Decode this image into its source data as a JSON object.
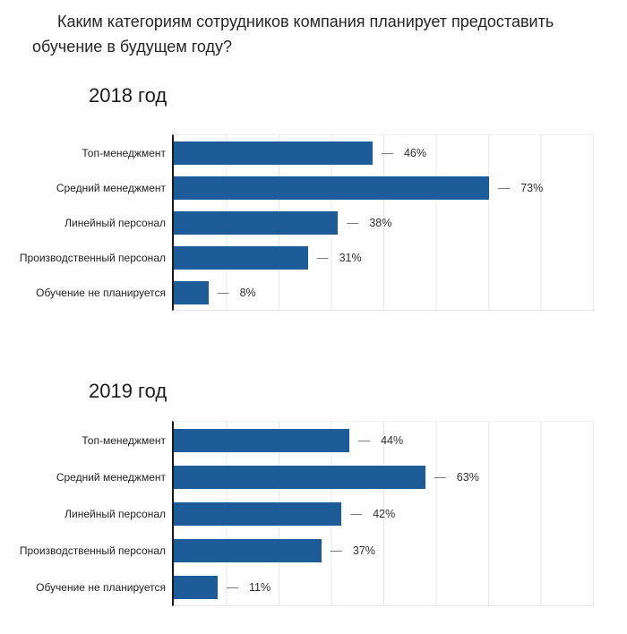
{
  "title": "Каким категориям сотрудников компания планирует предоставить обучение в будущем году?",
  "value_prefix": "—",
  "colors": {
    "bar": "#1e5b99",
    "grid": "#e7e7e7",
    "axis": "#1a1a1a",
    "text": "#262626"
  },
  "chart_data": [
    {
      "type": "bar",
      "orientation": "horizontal",
      "title": "2018 год",
      "categories": [
        "Топ-менеджмент",
        "Средний менеджмент",
        "Линейный персонал",
        "Производственный персонал",
        "Обучение не планируется"
      ],
      "values": [
        46,
        73,
        38,
        31,
        8
      ],
      "value_labels": [
        "46%",
        "73%",
        "38%",
        "31%",
        "8%"
      ],
      "unit": "%",
      "xlabel": "",
      "ylabel": "",
      "xlim": [
        0,
        97
      ],
      "grid": true,
      "legend": false
    },
    {
      "type": "bar",
      "orientation": "horizontal",
      "title": "2019 год",
      "categories": [
        "Топ-менеджмент",
        "Средний менеджмент",
        "Линейный персонал",
        "Производственный персонал",
        "Обучение не планируется"
      ],
      "values": [
        44,
        63,
        42,
        37,
        11
      ],
      "value_labels": [
        "44%",
        "63%",
        "42%",
        "37%",
        "11%"
      ],
      "unit": "%",
      "xlabel": "",
      "ylabel": "",
      "xlim": [
        0,
        105
      ],
      "grid": true,
      "legend": false
    }
  ]
}
